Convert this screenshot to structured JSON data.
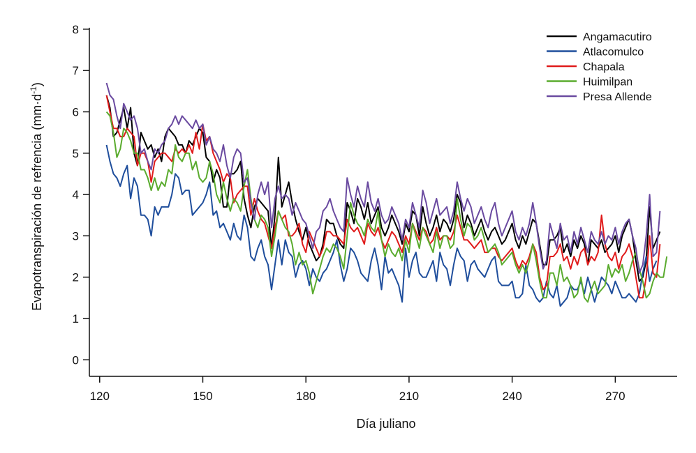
{
  "chart_data": {
    "type": "line",
    "title": "",
    "xlabel": "Día juliano",
    "ylabel": "Evapotranspiración de refrencia (mm·d",
    "ylabel_sup": "-1",
    "ylabel_close": ")",
    "xlim": [
      117,
      288
    ],
    "ylim": [
      -0.4,
      8.2
    ],
    "xticks": [
      120,
      150,
      180,
      210,
      240,
      270
    ],
    "yticks": [
      0,
      1,
      2,
      3,
      4,
      5,
      6,
      7,
      8
    ],
    "legend_position": "top-right",
    "x_start": 122,
    "series": [
      {
        "name": "Angamacutiro",
        "color": "#000000",
        "values": [
          6.4,
          6.1,
          5.4,
          5.5,
          5.8,
          6.1,
          5.6,
          6.1,
          5.0,
          4.7,
          5.5,
          5.3,
          5.1,
          5.2,
          4.9,
          5.1,
          4.8,
          5.4,
          5.6,
          5.5,
          5.4,
          5.2,
          5.2,
          5.0,
          5.3,
          5.2,
          5.4,
          5.6,
          5.5,
          4.9,
          4.8,
          4.3,
          4.6,
          4.4,
          3.7,
          3.7,
          4.5,
          4.5,
          4.6,
          4.8,
          3.9,
          3.5,
          3.2,
          3.7,
          3.9,
          3.8,
          3.7,
          3.6,
          2.7,
          3.5,
          4.9,
          3.7,
          4.0,
          4.3,
          3.8,
          3.4,
          3.1,
          2.9,
          3.2,
          2.8,
          2.6,
          2.4,
          2.5,
          2.8,
          3.4,
          3.3,
          3.3,
          3.0,
          2.8,
          2.7,
          3.8,
          3.6,
          3.3,
          3.9,
          3.7,
          3.4,
          3.8,
          3.3,
          3.5,
          3.7,
          3.2,
          3.0,
          3.2,
          3.5,
          3.3,
          3.1,
          2.8,
          3.3,
          3.1,
          3.6,
          3.5,
          3.0,
          3.7,
          3.3,
          3.0,
          3.2,
          3.5,
          3.1,
          3.4,
          3.3,
          3.1,
          3.4,
          4.0,
          3.8,
          3.2,
          3.5,
          3.3,
          3.0,
          3.2,
          3.4,
          3.1,
          2.9,
          3.1,
          3.2,
          3.0,
          2.8,
          2.9,
          3.1,
          3.3,
          2.9,
          2.7,
          3.0,
          2.8,
          3.1,
          3.4,
          3.3,
          2.8,
          2.3,
          2.3,
          2.9,
          2.9,
          3.0,
          3.2,
          2.6,
          2.8,
          2.5,
          2.9,
          2.7,
          3.0,
          2.8,
          2.3,
          2.9,
          2.8,
          2.7,
          2.9,
          2.6,
          2.7,
          2.8,
          3.0,
          2.6,
          3.0,
          3.2,
          3.4,
          3.0,
          2.4,
          1.9,
          2.0,
          2.4,
          3.7,
          2.7,
          2.9,
          3.1
        ]
      },
      {
        "name": "Atlacomulco",
        "color": "#1f4e9c",
        "values": [
          5.2,
          4.8,
          4.5,
          4.4,
          4.2,
          4.5,
          4.7,
          3.9,
          4.4,
          4.2,
          3.5,
          3.5,
          3.4,
          3.0,
          3.7,
          3.5,
          3.7,
          3.7,
          3.7,
          4.0,
          4.5,
          4.4,
          4.0,
          4.1,
          4.1,
          3.5,
          3.6,
          3.7,
          3.8,
          4.0,
          4.3,
          3.5,
          3.6,
          3.2,
          3.3,
          3.1,
          2.9,
          3.3,
          3.0,
          2.9,
          3.5,
          3.2,
          2.5,
          2.4,
          2.7,
          2.9,
          2.5,
          2.3,
          1.7,
          2.3,
          2.9,
          2.3,
          2.9,
          2.6,
          2.5,
          2.0,
          2.3,
          2.4,
          2.2,
          1.8,
          2.2,
          2.0,
          1.9,
          2.1,
          2.2,
          2.4,
          2.6,
          2.9,
          2.3,
          1.9,
          2.2,
          2.7,
          2.6,
          2.4,
          2.1,
          2.0,
          1.9,
          2.4,
          2.7,
          2.3,
          1.7,
          2.5,
          2.1,
          2.2,
          2.0,
          1.8,
          1.4,
          2.7,
          2.0,
          2.4,
          2.6,
          2.1,
          2.0,
          2.0,
          2.2,
          2.4,
          1.9,
          2.6,
          2.3,
          2.2,
          1.8,
          2.3,
          2.7,
          2.5,
          2.4,
          1.9,
          2.3,
          2.4,
          2.2,
          2.1,
          2.0,
          2.2,
          2.4,
          2.5,
          1.9,
          1.8,
          1.8,
          1.8,
          1.9,
          1.5,
          1.5,
          1.6,
          2.3,
          1.8,
          1.7,
          1.5,
          1.4,
          1.5,
          1.9,
          1.6,
          1.5,
          1.8,
          1.3,
          1.4,
          1.5,
          1.8,
          1.7,
          1.7,
          1.9,
          1.6,
          2.0,
          1.7,
          1.4,
          1.7,
          2.0,
          1.9,
          1.8,
          1.6,
          1.9,
          1.7,
          1.5,
          1.5,
          1.6,
          1.5,
          1.4,
          1.6,
          2.1,
          2.5,
          1.9,
          2.2,
          2.4
        ]
      },
      {
        "name": "Chapala",
        "color": "#e01b1b",
        "values": [
          6.4,
          6.0,
          5.6,
          5.6,
          5.4,
          5.4,
          5.6,
          5.5,
          5.4,
          4.7,
          5.0,
          5.0,
          4.8,
          4.3,
          4.8,
          4.9,
          5.0,
          5.0,
          4.9,
          4.8,
          5.1,
          5.0,
          5.1,
          5.0,
          5.2,
          5.0,
          5.5,
          5.1,
          5.7,
          5.3,
          5.4,
          5.0,
          4.8,
          4.6,
          4.3,
          4.5,
          4.4,
          3.8,
          4.0,
          4.1,
          4.2,
          4.2,
          3.5,
          3.9,
          3.6,
          3.4,
          3.3,
          3.0,
          2.7,
          3.2,
          3.6,
          3.4,
          3.5,
          3.0,
          3.0,
          3.1,
          3.3,
          2.8,
          2.6,
          3.1,
          2.9,
          2.7,
          2.5,
          2.7,
          3.1,
          3.1,
          3.0,
          3.0,
          2.9,
          2.8,
          3.4,
          3.2,
          3.1,
          3.2,
          3.0,
          2.8,
          3.3,
          3.1,
          3.0,
          3.2,
          2.9,
          2.7,
          2.9,
          3.1,
          3.0,
          2.8,
          2.6,
          3.0,
          2.8,
          3.3,
          3.1,
          2.9,
          3.2,
          3.1,
          2.8,
          2.9,
          3.2,
          2.9,
          3.0,
          3.0,
          2.9,
          3.1,
          3.5,
          3.2,
          2.9,
          2.9,
          2.8,
          2.7,
          2.8,
          2.9,
          2.6,
          2.6,
          2.7,
          2.7,
          2.5,
          2.4,
          2.5,
          2.6,
          2.7,
          2.4,
          2.2,
          2.4,
          2.3,
          2.5,
          2.8,
          2.6,
          2.0,
          1.7,
          1.8,
          2.5,
          2.5,
          2.6,
          2.8,
          2.4,
          2.5,
          2.2,
          2.5,
          2.3,
          2.6,
          2.7,
          2.3,
          2.5,
          2.4,
          2.6,
          3.5,
          2.8,
          2.5,
          2.4,
          2.6,
          2.2,
          2.5,
          2.6,
          2.8,
          2.5,
          2.0,
          1.5,
          1.5,
          2.0,
          3.0,
          2.1,
          2.0,
          2.8
        ]
      },
      {
        "name": "Huimilpan",
        "color": "#5aab2e",
        "values": [
          6.0,
          5.9,
          5.5,
          4.9,
          5.1,
          5.6,
          5.5,
          5.3,
          5.0,
          5.0,
          4.6,
          4.6,
          4.4,
          4.1,
          4.4,
          4.1,
          4.3,
          4.2,
          4.6,
          4.5,
          5.2,
          4.9,
          4.8,
          5.0,
          5.0,
          4.6,
          4.8,
          4.4,
          4.3,
          4.4,
          4.8,
          4.5,
          4.0,
          3.8,
          4.3,
          3.9,
          3.6,
          3.9,
          3.8,
          3.6,
          4.2,
          4.6,
          3.9,
          3.4,
          3.2,
          3.5,
          3.4,
          3.2,
          2.5,
          3.0,
          3.6,
          3.4,
          3.2,
          3.1,
          2.8,
          2.3,
          2.6,
          2.3,
          2.4,
          2.1,
          1.6,
          1.9,
          2.2,
          2.5,
          2.7,
          2.6,
          2.8,
          2.7,
          2.5,
          2.2,
          3.0,
          3.8,
          3.5,
          3.3,
          3.2,
          3.0,
          3.4,
          3.2,
          3.1,
          3.6,
          2.9,
          2.5,
          2.8,
          2.6,
          2.5,
          2.7,
          2.4,
          2.9,
          2.6,
          3.3,
          3.0,
          2.7,
          3.2,
          3.0,
          2.8,
          2.6,
          3.1,
          2.7,
          3.0,
          3.0,
          2.7,
          2.8,
          3.9,
          3.4,
          3.0,
          3.3,
          3.2,
          2.9,
          3.0,
          3.2,
          2.9,
          2.6,
          2.7,
          2.8,
          2.6,
          2.3,
          2.4,
          2.5,
          2.6,
          2.3,
          2.1,
          2.3,
          2.1,
          2.4,
          2.8,
          2.4,
          1.9,
          1.5,
          1.5,
          2.1,
          2.1,
          1.8,
          2.3,
          1.9,
          2.0,
          1.8,
          1.5,
          1.6,
          2.0,
          1.5,
          1.4,
          1.7,
          1.9,
          1.6,
          1.7,
          1.8,
          2.3,
          2.0,
          2.2,
          2.1,
          2.3,
          1.9,
          2.1,
          2.4,
          2.6,
          2.2,
          1.9,
          1.5,
          1.6,
          1.9,
          2.1,
          2.0,
          2.0,
          2.5
        ]
      },
      {
        "name": "Presa Allende",
        "color": "#6a4aa0",
        "values": [
          6.7,
          6.4,
          6.3,
          5.9,
          5.6,
          6.2,
          6.0,
          5.8,
          5.9,
          5.6,
          5.0,
          5.1,
          4.8,
          4.6,
          5.1,
          5.0,
          5.2,
          5.3,
          5.6,
          5.7,
          5.9,
          5.7,
          5.9,
          5.8,
          5.7,
          5.6,
          5.8,
          5.6,
          5.7,
          5.2,
          5.4,
          5.1,
          5.0,
          4.8,
          5.2,
          4.7,
          4.4,
          4.9,
          5.1,
          5.0,
          4.3,
          4.4,
          3.8,
          3.4,
          4.0,
          4.3,
          4.0,
          4.3,
          3.2,
          3.9,
          4.2,
          3.9,
          4.0,
          3.9,
          3.5,
          3.8,
          3.6,
          3.4,
          3.3,
          3.0,
          2.7,
          3.1,
          3.2,
          3.6,
          3.7,
          3.9,
          3.6,
          3.4,
          3.2,
          3.1,
          4.4,
          4.0,
          3.7,
          4.2,
          3.9,
          3.7,
          4.3,
          3.8,
          3.6,
          3.9,
          3.5,
          3.3,
          3.4,
          3.7,
          3.5,
          3.3,
          2.9,
          3.4,
          3.2,
          3.8,
          3.5,
          3.2,
          4.1,
          3.8,
          3.3,
          3.6,
          3.9,
          3.5,
          3.6,
          3.7,
          3.3,
          3.6,
          4.3,
          3.9,
          3.6,
          3.9,
          3.7,
          3.3,
          3.5,
          3.7,
          3.4,
          3.2,
          3.6,
          3.8,
          3.3,
          3.0,
          3.2,
          3.4,
          3.6,
          3.1,
          2.9,
          3.2,
          3.0,
          3.3,
          3.8,
          3.3,
          2.7,
          2.2,
          2.4,
          3.3,
          3.0,
          2.7,
          3.3,
          2.9,
          3.0,
          2.6,
          3.1,
          2.8,
          3.2,
          2.9,
          2.6,
          3.1,
          2.9,
          2.8,
          3.1,
          2.8,
          3.0,
          2.9,
          3.2,
          2.8,
          3.1,
          3.3,
          3.4,
          3.0,
          2.7,
          2.1,
          2.3,
          3.0,
          4.0,
          2.5,
          2.6,
          3.6
        ]
      }
    ]
  }
}
